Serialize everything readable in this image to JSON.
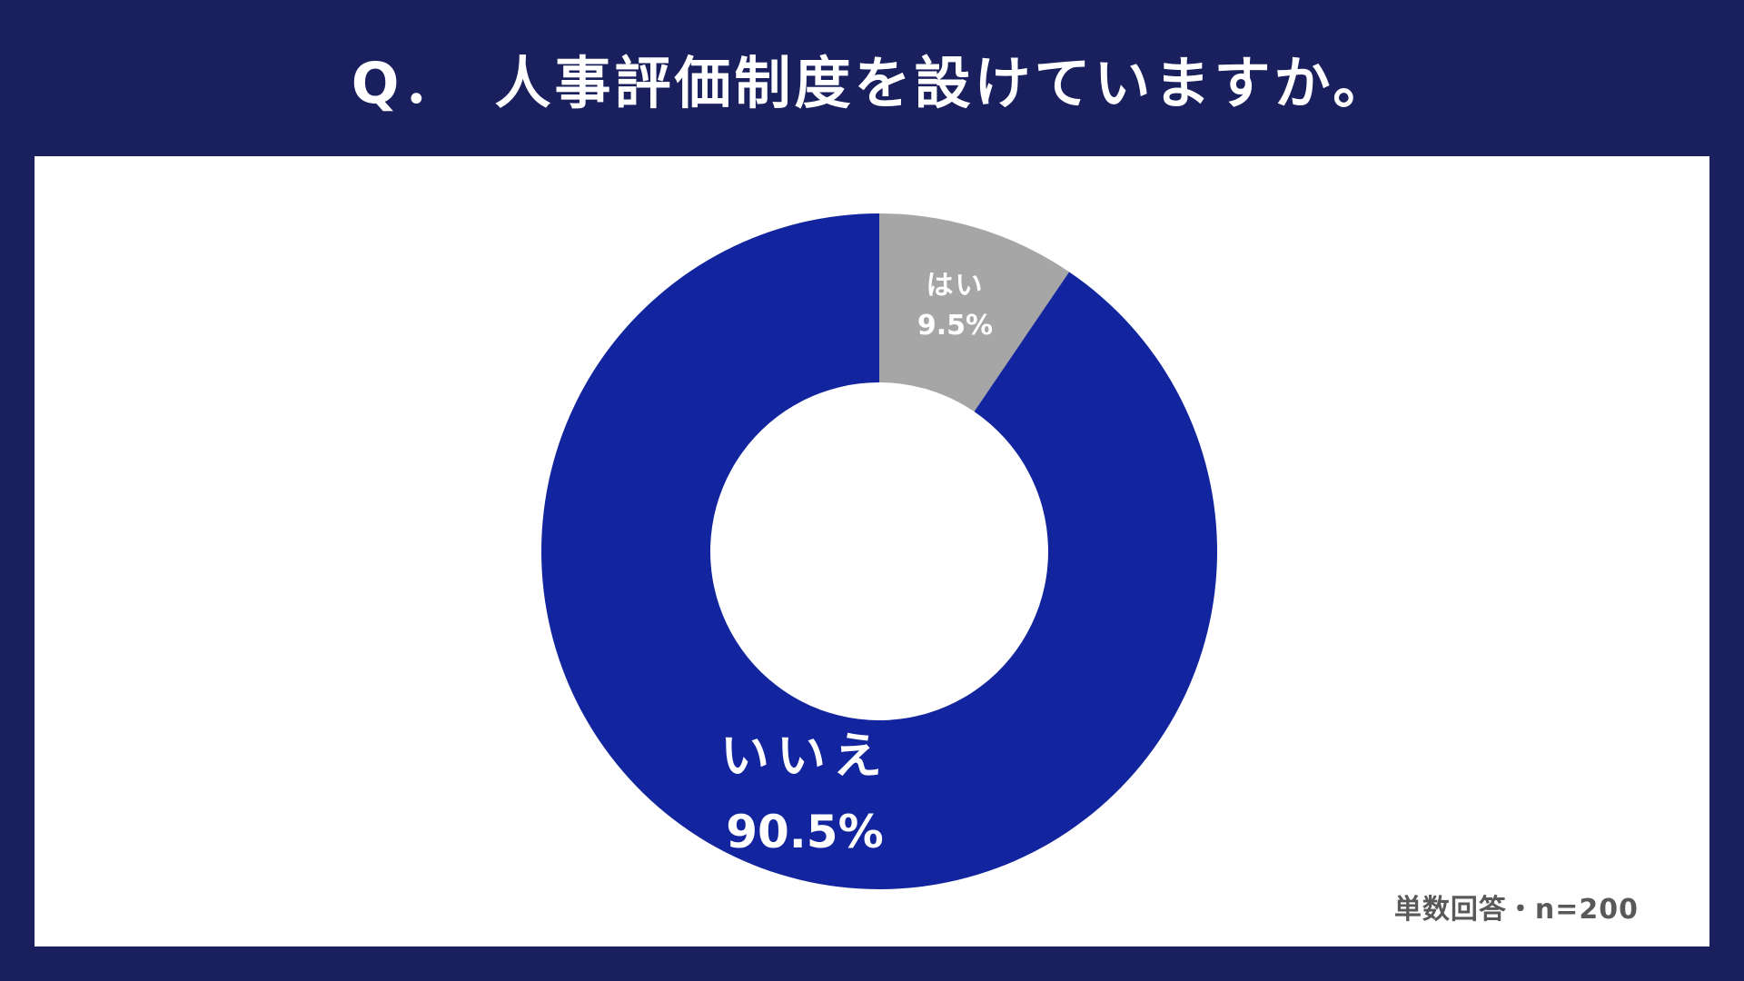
{
  "chart_data": {
    "type": "pie",
    "title": "Q．　人事評価制度を設けていますか。",
    "categories": [
      "はい",
      "いいえ"
    ],
    "values": [
      9.5,
      90.5
    ],
    "value_labels": [
      "9.5%",
      "90.5%"
    ],
    "colors": [
      "#a6a6a6",
      "#12259e"
    ],
    "note": "単数回答・n=200"
  }
}
